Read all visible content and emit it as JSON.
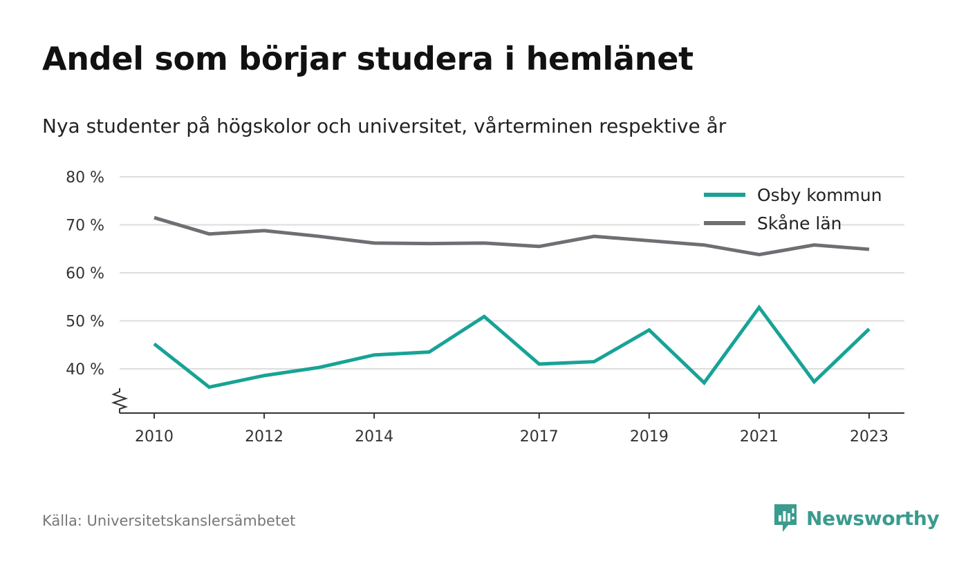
{
  "header": {
    "title": "Andel som börjar studera i hemlänet",
    "subtitle": "Nya studenter på högskolor och universitet, vårterminen respektive år"
  },
  "footer": {
    "source": "Källa: Universitetskanslersämbetet",
    "brand": "Newsworthy"
  },
  "colors": {
    "osby": "#17a396",
    "skane": "#6e6e73",
    "brand": "#3a9b8e",
    "grid": "#dddddd",
    "axis": "#333333"
  },
  "chart_data": {
    "type": "line",
    "title": "Andel som börjar studera i hemlänet",
    "subtitle": "Nya studenter på högskolor och universitet, vårterminen respektive år",
    "xlabel": "",
    "ylabel": "",
    "x": [
      2010,
      2011,
      2012,
      2013,
      2014,
      2015,
      2016,
      2017,
      2018,
      2019,
      2020,
      2021,
      2022,
      2023
    ],
    "x_ticks": [
      2010,
      2012,
      2014,
      2017,
      2019,
      2021,
      2023
    ],
    "y_ticks": [
      40,
      50,
      60,
      70,
      80
    ],
    "y_tick_labels": [
      "40 %",
      "50 %",
      "60 %",
      "70 %",
      "80 %"
    ],
    "ylim": [
      31,
      80
    ],
    "y_axis_break": true,
    "grid": true,
    "legend_position": "top-right",
    "series": [
      {
        "name": "Osby kommun",
        "color": "#17a396",
        "values": [
          45.2,
          36.2,
          38.6,
          40.3,
          42.9,
          43.5,
          50.9,
          41.0,
          41.5,
          48.1,
          37.1,
          52.8,
          37.3,
          48.3
        ]
      },
      {
        "name": "Skåne län",
        "color": "#6e6e73",
        "values": [
          71.5,
          68.1,
          68.8,
          67.6,
          66.2,
          66.1,
          66.2,
          65.5,
          67.6,
          66.7,
          65.8,
          63.8,
          65.8,
          64.9
        ]
      }
    ]
  }
}
